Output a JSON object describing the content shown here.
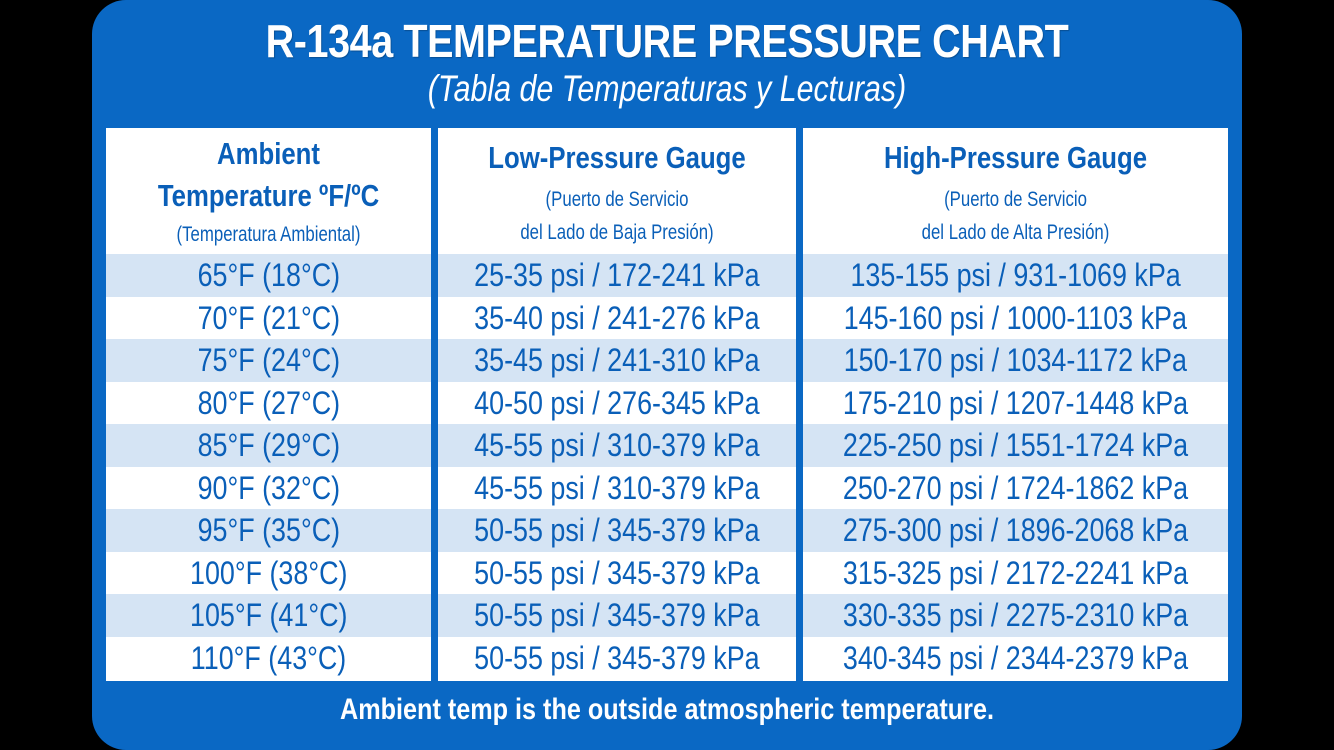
{
  "title": "R-134a TEMPERATURE PRESSURE CHART",
  "subtitle": "(Tabla de Temperaturas y Lecturas)",
  "columns": [
    {
      "heading_line1": "Ambient",
      "heading_line2": "Temperature ºF/ºC",
      "note": "(Temperatura Ambiental)"
    },
    {
      "heading": "Low-Pressure Gauge",
      "note_line1": "(Puerto de Servicio",
      "note_line2": "del Lado de Baja Presión)"
    },
    {
      "heading": "High-Pressure Gauge",
      "note_line1": "(Puerto de Servicio",
      "note_line2": "del Lado de Alta Presión)"
    }
  ],
  "rows": [
    {
      "ambient": "65°F (18°C)",
      "low": "25-35 psi / 172-241 kPa",
      "high": "135-155 psi / 931-1069 kPa"
    },
    {
      "ambient": "70°F (21°C)",
      "low": "35-40 psi / 241-276 kPa",
      "high": "145-160 psi / 1000-1103 kPa"
    },
    {
      "ambient": "75°F (24°C)",
      "low": "35-45 psi / 241-310 kPa",
      "high": "150-170 psi / 1034-1172 kPa"
    },
    {
      "ambient": "80°F (27°C)",
      "low": "40-50 psi / 276-345 kPa",
      "high": "175-210 psi / 1207-1448 kPa"
    },
    {
      "ambient": "85°F (29°C)",
      "low": "45-55 psi / 310-379 kPa",
      "high": "225-250 psi / 1551-1724 kPa"
    },
    {
      "ambient": "90°F (32°C)",
      "low": "45-55 psi / 310-379 kPa",
      "high": "250-270 psi / 1724-1862 kPa"
    },
    {
      "ambient": "95°F (35°C)",
      "low": "50-55 psi / 345-379 kPa",
      "high": "275-300 psi / 1896-2068 kPa"
    },
    {
      "ambient": "100°F (38°C)",
      "low": "50-55 psi / 345-379 kPa",
      "high": "315-325 psi / 2172-2241 kPa"
    },
    {
      "ambient": "105°F (41°C)",
      "low": "50-55 psi / 345-379 kPa",
      "high": "330-335 psi / 2275-2310 kPa"
    },
    {
      "ambient": "110°F (43°C)",
      "low": "50-55 psi / 345-379 kPa",
      "high": "340-345 psi / 2344-2379 kPa"
    }
  ],
  "footer": "Ambient temp is the outside atmospheric temperature.",
  "colors": {
    "card_blue": "#0a68c4",
    "text_blue": "#0a5fb8",
    "row_shade": "#d5e4f4",
    "background": "#000000"
  }
}
